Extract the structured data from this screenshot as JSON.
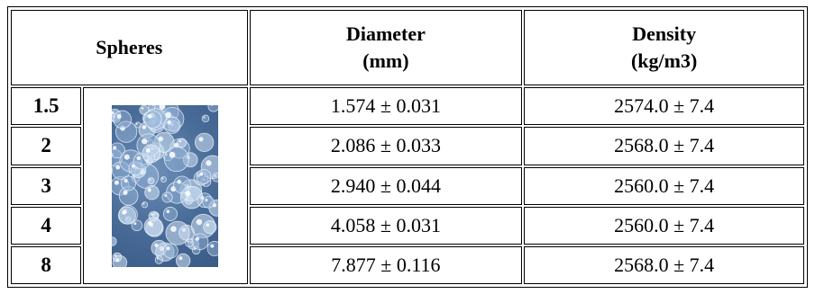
{
  "table": {
    "headers": {
      "spheres": "Spheres",
      "diameter_line1": "Diameter",
      "diameter_line2": "(mm)",
      "density_line1": "Density",
      "density_line2": "(kg/m3)"
    },
    "rows": [
      {
        "size": "1.5",
        "diameter": "1.574 ± 0.031",
        "density": "2574.0 ± 7.4"
      },
      {
        "size": "2",
        "diameter": "2.086 ± 0.033",
        "density": "2568.0 ± 7.4"
      },
      {
        "size": "3",
        "diameter": "2.940 ± 0.044",
        "density": "2560.0 ± 7.4"
      },
      {
        "size": "4",
        "diameter": "4.058 ± 0.031",
        "density": "2560.0 ± 7.4"
      },
      {
        "size": "8",
        "diameter": "7.877 ± 0.116",
        "density": "2568.0 ± 7.4"
      }
    ]
  },
  "colors": {
    "border": "#000000",
    "sphere_tint": "#5a7eaa"
  }
}
